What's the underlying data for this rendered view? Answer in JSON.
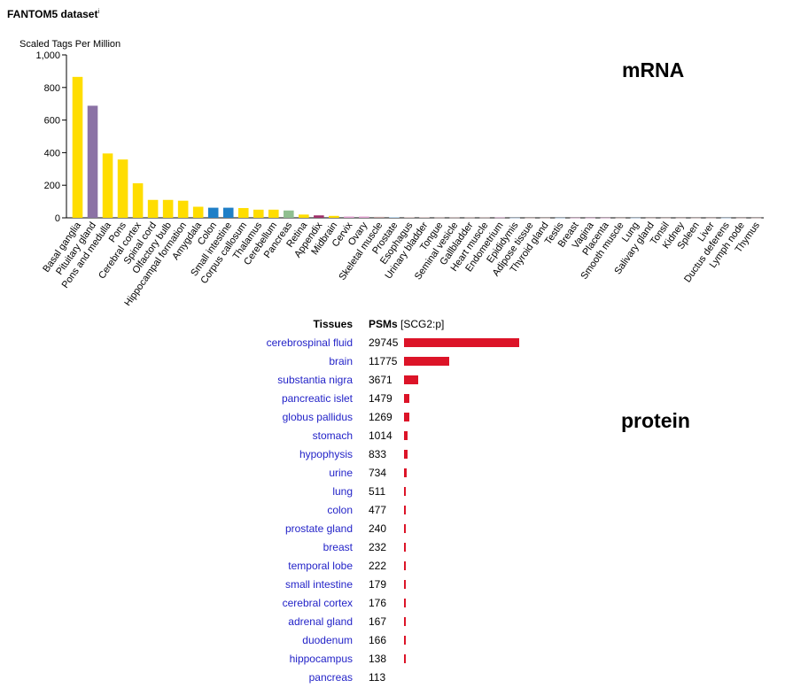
{
  "header": {
    "title": "FANTOM5 dataset",
    "info_marker": "i"
  },
  "chart_data": [
    {
      "type": "bar",
      "ylabel": "Scaled Tags Per Million",
      "annotation": "mRNA",
      "ylim": [
        0,
        1000
      ],
      "yticks": [
        "0",
        "200",
        "400",
        "600",
        "800",
        "1,000"
      ],
      "ytick_values": [
        0,
        200,
        400,
        600,
        800,
        1000
      ],
      "categories": [
        "Basal ganglia",
        "Pituitary gland",
        "Pons and medulla",
        "Pons",
        "Cerebral cortex",
        "Spinal cord",
        "Olfactory bulb",
        "Hippocampal formation",
        "Amygdala",
        "Colon",
        "Small intestine",
        "Corpus callosum",
        "Thalamus",
        "Cerebellum",
        "Pancreas",
        "Retina",
        "Appendix",
        "Midbrain",
        "Cervix",
        "Ovary",
        "Skeletal muscle",
        "Prostate",
        "Esophagus",
        "Urinary bladder",
        "Tongue",
        "Seminal vesicle",
        "Gallbladder",
        "Heart muscle",
        "Endometrium",
        "Epididymis",
        "Adipose tissue",
        "Thyroid gland",
        "Testis",
        "Breast",
        "Vagina",
        "Placenta",
        "Smooth muscle",
        "Lung",
        "Salivary gland",
        "Tonsil",
        "Kidney",
        "Spleen",
        "Liver",
        "Ductus deferens",
        "Lymph node",
        "Thymus"
      ],
      "values": [
        865,
        688,
        395,
        358,
        212,
        110,
        110,
        105,
        68,
        62,
        62,
        60,
        50,
        50,
        45,
        20,
        15,
        12,
        8,
        8,
        6,
        4,
        3,
        3,
        2,
        2,
        2,
        2,
        2,
        1,
        1,
        1,
        1,
        1,
        1,
        1,
        1,
        1,
        1,
        1,
        1,
        1,
        1,
        1,
        1,
        1
      ],
      "colors": [
        "#ffdd00",
        "#8b72a5",
        "#ffdd00",
        "#ffdd00",
        "#ffdd00",
        "#ffdd00",
        "#ffdd00",
        "#ffdd00",
        "#ffdd00",
        "#1f7fc7",
        "#1f7fc7",
        "#ffdd00",
        "#ffdd00",
        "#ffdd00",
        "#8fbf8f",
        "#ffdd00",
        "#a0306a",
        "#ffdd00",
        "#e0a0d0",
        "#e0a0d0",
        "#c0a0a0",
        "#aaccee",
        "#c0a0a0",
        "#c0a0a0",
        "#c0a0a0",
        "#c0a0a0",
        "#c0a0a0",
        "#c0a0a0",
        "#e0a0d0",
        "#aaccee",
        "#c0a0a0",
        "#c0a0a0",
        "#aaccee",
        "#e0a0d0",
        "#e0a0d0",
        "#e0a0d0",
        "#c0a0a0",
        "#aaccee",
        "#c0a0a0",
        "#c0a0a0",
        "#c0a0a0",
        "#c0a0a0",
        "#c0a0a0",
        "#aaccee",
        "#c0a0a0",
        "#c0a0a0"
      ]
    },
    {
      "type": "bar",
      "orientation": "horizontal",
      "annotation": "protein",
      "header_tissues": "Tissues",
      "header_psms": "PSMs",
      "header_unit": "[SCG2:p]",
      "bar_color": "#dc1428",
      "rows": [
        {
          "tissue": "cerebrospinal fluid",
          "value": 29745
        },
        {
          "tissue": "brain",
          "value": 11775
        },
        {
          "tissue": "substantia nigra",
          "value": 3671
        },
        {
          "tissue": "pancreatic islet",
          "value": 1479
        },
        {
          "tissue": "globus pallidus",
          "value": 1269
        },
        {
          "tissue": "stomach",
          "value": 1014
        },
        {
          "tissue": "hypophysis",
          "value": 833
        },
        {
          "tissue": "urine",
          "value": 734
        },
        {
          "tissue": "lung",
          "value": 511
        },
        {
          "tissue": "colon",
          "value": 477
        },
        {
          "tissue": "prostate gland",
          "value": 240
        },
        {
          "tissue": "breast",
          "value": 232
        },
        {
          "tissue": "temporal lobe",
          "value": 222
        },
        {
          "tissue": "small intestine",
          "value": 179
        },
        {
          "tissue": "cerebral cortex",
          "value": 176
        },
        {
          "tissue": "adrenal gland",
          "value": 167
        },
        {
          "tissue": "duodenum",
          "value": 166
        },
        {
          "tissue": "hippocampus",
          "value": 138
        },
        {
          "tissue": "pancreas",
          "value": 113
        }
      ]
    }
  ]
}
